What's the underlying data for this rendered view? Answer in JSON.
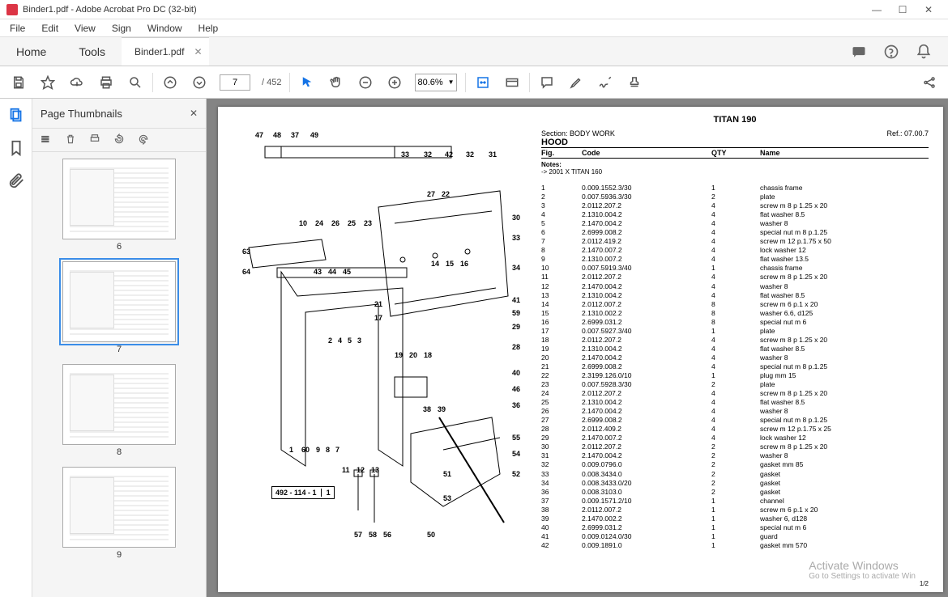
{
  "window": {
    "title": "Binder1.pdf - Adobe Acrobat Pro DC (32-bit)"
  },
  "menu": [
    "File",
    "Edit",
    "View",
    "Sign",
    "Window",
    "Help"
  ],
  "tabs": {
    "home": "Home",
    "tools": "Tools",
    "doc": "Binder1.pdf"
  },
  "toolbar": {
    "page_current": "7",
    "page_total": "/ 452",
    "zoom": "80.6%"
  },
  "thumbnails": {
    "title": "Page Thumbnails",
    "items": [
      {
        "num": "6",
        "selected": false
      },
      {
        "num": "7",
        "selected": true
      },
      {
        "num": "8",
        "selected": false
      },
      {
        "num": "9",
        "selected": false
      }
    ]
  },
  "doc": {
    "model": "TITAN 190",
    "section": "Section: BODY WORK",
    "subsection": "HOOD",
    "ref": "Ref.: 07.00.7",
    "cols": {
      "fig": "Fig.",
      "code": "Code",
      "qty": "QTY",
      "name": "Name"
    },
    "notes_label": "Notes:",
    "notes": "-> 2001 X TITAN 160",
    "page_num": "1/2",
    "part_box": "492 - 114 - 1",
    "part_box_suffix": "1",
    "callouts_top": [
      "47",
      "48",
      "37",
      "49",
      "33",
      "32",
      "42",
      "32",
      "31"
    ],
    "callouts_mid1": [
      "27",
      "22"
    ],
    "callouts_mid2": [
      "10",
      "24",
      "26",
      "25",
      "23"
    ],
    "callouts_side": [
      "30",
      "33",
      "34",
      "41",
      "59",
      "29",
      "28",
      "40",
      "46",
      "36",
      "55",
      "54",
      "52"
    ],
    "callouts_inner": [
      "63",
      "64",
      "43",
      "44",
      "45",
      "21",
      "17",
      "2",
      "4",
      "5",
      "3",
      "14",
      "15",
      "16",
      "19",
      "20",
      "18",
      "38",
      "39",
      "1",
      "60",
      "9",
      "8",
      "7",
      "11",
      "12",
      "13",
      "51",
      "53",
      "57",
      "58",
      "56",
      "50"
    ],
    "parts": [
      {
        "fig": "1",
        "code": "0.009.1552.3/30",
        "qty": "1",
        "name": "chassis frame"
      },
      {
        "fig": "2",
        "code": "0.007.5936.3/30",
        "qty": "2",
        "name": "plate"
      },
      {
        "fig": "3",
        "code": "2.0112.207.2",
        "qty": "4",
        "name": "screw m 8 p 1.25 x 20"
      },
      {
        "fig": "4",
        "code": "2.1310.004.2",
        "qty": "4",
        "name": "flat washer 8.5"
      },
      {
        "fig": "5",
        "code": "2.1470.004.2",
        "qty": "4",
        "name": "washer 8"
      },
      {
        "fig": "6",
        "code": "2.6999.008.2",
        "qty": "4",
        "name": "special nut m 8 p.1.25"
      },
      {
        "fig": "7",
        "code": "2.0112.419.2",
        "qty": "4",
        "name": "screw m 12 p.1.75 x 50"
      },
      {
        "fig": "8",
        "code": "2.1470.007.2",
        "qty": "4",
        "name": "lock washer 12"
      },
      {
        "fig": "9",
        "code": "2.1310.007.2",
        "qty": "4",
        "name": "flat washer 13.5"
      },
      {
        "fig": "10",
        "code": "0.007.5919.3/40",
        "qty": "1",
        "name": "chassis frame"
      },
      {
        "fig": "11",
        "code": "2.0112.207.2",
        "qty": "4",
        "name": "screw m 8 p 1.25 x 20"
      },
      {
        "fig": "12",
        "code": "2.1470.004.2",
        "qty": "4",
        "name": "washer 8"
      },
      {
        "fig": "13",
        "code": "2.1310.004.2",
        "qty": "4",
        "name": "flat washer 8.5"
      },
      {
        "fig": "14",
        "code": "2.0112.007.2",
        "qty": "8",
        "name": "screw m 6 p.1 x 20"
      },
      {
        "fig": "15",
        "code": "2.1310.002.2",
        "qty": "8",
        "name": "washer 6.6, d125"
      },
      {
        "fig": "16",
        "code": "2.6999.031.2",
        "qty": "8",
        "name": "special nut m 6"
      },
      {
        "fig": "17",
        "code": "0.007.5927.3/40",
        "qty": "1",
        "name": "plate"
      },
      {
        "fig": "18",
        "code": "2.0112.207.2",
        "qty": "4",
        "name": "screw m 8 p 1.25 x 20"
      },
      {
        "fig": "19",
        "code": "2.1310.004.2",
        "qty": "4",
        "name": "flat washer 8.5"
      },
      {
        "fig": "20",
        "code": "2.1470.004.2",
        "qty": "4",
        "name": "washer 8"
      },
      {
        "fig": "21",
        "code": "2.6999.008.2",
        "qty": "4",
        "name": "special nut m 8 p.1.25"
      },
      {
        "fig": "22",
        "code": "2.3199.126.0/10",
        "qty": "1",
        "name": "plug mm 15"
      },
      {
        "fig": "23",
        "code": "0.007.5928.3/30",
        "qty": "2",
        "name": "plate"
      },
      {
        "fig": "24",
        "code": "2.0112.207.2",
        "qty": "4",
        "name": "screw m 8 p 1.25 x 20"
      },
      {
        "fig": "25",
        "code": "2.1310.004.2",
        "qty": "4",
        "name": "flat washer 8.5"
      },
      {
        "fig": "26",
        "code": "2.1470.004.2",
        "qty": "4",
        "name": "washer 8"
      },
      {
        "fig": "27",
        "code": "2.6999.008.2",
        "qty": "4",
        "name": "special nut m 8 p.1.25"
      },
      {
        "fig": "28",
        "code": "2.0112.409.2",
        "qty": "4",
        "name": "screw m 12 p.1.75 x 25"
      },
      {
        "fig": "29",
        "code": "2.1470.007.2",
        "qty": "4",
        "name": "lock washer 12"
      },
      {
        "fig": "30",
        "code": "2.0112.207.2",
        "qty": "2",
        "name": "screw m 8 p 1.25 x 20"
      },
      {
        "fig": "31",
        "code": "2.1470.004.2",
        "qty": "2",
        "name": "washer 8"
      },
      {
        "fig": "32",
        "code": "0.009.0796.0",
        "qty": "2",
        "name": "gasket mm 85"
      },
      {
        "fig": "33",
        "code": "0.008.3434.0",
        "qty": "2",
        "name": "gasket"
      },
      {
        "fig": "34",
        "code": "0.008.3433.0/20",
        "qty": "2",
        "name": "gasket"
      },
      {
        "fig": "36",
        "code": "0.008.3103.0",
        "qty": "2",
        "name": "gasket"
      },
      {
        "fig": "37",
        "code": "0.009.1571.2/10",
        "qty": "1",
        "name": "channel"
      },
      {
        "fig": "38",
        "code": "2.0112.007.2",
        "qty": "1",
        "name": "screw m 6 p.1 x 20"
      },
      {
        "fig": "39",
        "code": "2.1470.002.2",
        "qty": "1",
        "name": "washer 6, d128"
      },
      {
        "fig": "40",
        "code": "2.6999.031.2",
        "qty": "1",
        "name": "special nut m 6"
      },
      {
        "fig": "41",
        "code": "0.009.0124.0/30",
        "qty": "1",
        "name": "guard"
      },
      {
        "fig": "42",
        "code": "0.009.1891.0",
        "qty": "1",
        "name": "gasket mm 570"
      }
    ]
  },
  "watermark": {
    "big": "Activate Windows",
    "small": "Go to Settings to activate Win"
  }
}
